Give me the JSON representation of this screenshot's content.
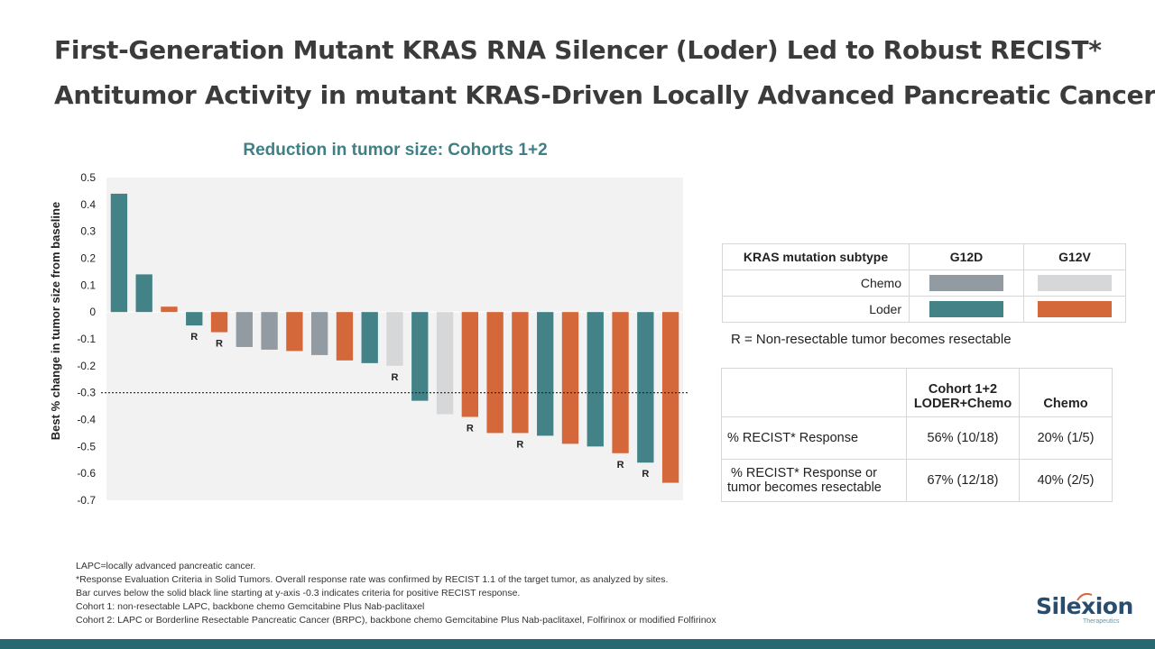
{
  "slide": {
    "title_line1": "First-Generation Mutant KRAS RNA Silencer (Loder) Led to Robust RECIST*",
    "title_line2": "Antitumor Activity in mutant KRAS-Driven Locally Advanced Pancreatic Cancer"
  },
  "colors": {
    "teal": "#438388",
    "orange": "#d5683a",
    "grey": "#929aa2",
    "light_grey": "#d6d7d9",
    "title_teal": "#3f7f86",
    "bar_band": "#286870"
  },
  "chart_data": {
    "type": "bar",
    "title": "Reduction in tumor size: Cohorts 1+2",
    "ylabel": "Best % change in tumor size from baseline",
    "xlabel": "",
    "ylim": [
      -0.7,
      0.5
    ],
    "yticks": [
      0.5,
      0.4,
      0.3,
      0.2,
      0.1,
      0,
      -0.1,
      -0.2,
      -0.3,
      -0.4,
      -0.5,
      -0.6,
      -0.7
    ],
    "threshold": -0.3,
    "threshold_note": "Bar curves below the solid black line starting at y-axis -0.3 indicates criteria for positive RECIST response.",
    "bars": [
      {
        "value": 0.44,
        "group": "Loder G12D",
        "resectable": false
      },
      {
        "value": 0.14,
        "group": "Loder G12D",
        "resectable": false
      },
      {
        "value": 0.02,
        "group": "Loder G12V",
        "resectable": false
      },
      {
        "value": -0.05,
        "group": "Loder G12D",
        "resectable": true
      },
      {
        "value": -0.075,
        "group": "Loder G12V",
        "resectable": true
      },
      {
        "value": -0.13,
        "group": "Chemo G12D",
        "resectable": false
      },
      {
        "value": -0.14,
        "group": "Chemo G12D",
        "resectable": false
      },
      {
        "value": -0.145,
        "group": "Loder G12V",
        "resectable": false
      },
      {
        "value": -0.16,
        "group": "Chemo G12D",
        "resectable": false
      },
      {
        "value": -0.18,
        "group": "Loder G12V",
        "resectable": false
      },
      {
        "value": -0.19,
        "group": "Loder G12D",
        "resectable": false
      },
      {
        "value": -0.2,
        "group": "Chemo G12V",
        "resectable": true
      },
      {
        "value": -0.33,
        "group": "Loder G12D",
        "resectable": false
      },
      {
        "value": -0.38,
        "group": "Chemo G12V",
        "resectable": false
      },
      {
        "value": -0.39,
        "group": "Loder G12V",
        "resectable": true
      },
      {
        "value": -0.45,
        "group": "Loder G12V",
        "resectable": false
      },
      {
        "value": -0.45,
        "group": "Loder G12V",
        "resectable": true
      },
      {
        "value": -0.46,
        "group": "Loder G12D",
        "resectable": false
      },
      {
        "value": -0.49,
        "group": "Loder G12V",
        "resectable": false
      },
      {
        "value": -0.5,
        "group": "Loder G12D",
        "resectable": false
      },
      {
        "value": -0.525,
        "group": "Loder G12V",
        "resectable": true
      },
      {
        "value": -0.56,
        "group": "Loder G12D",
        "resectable": true
      },
      {
        "value": -0.635,
        "group": "Loder G12V",
        "resectable": false
      }
    ],
    "resectable_marker": "R"
  },
  "legend": {
    "header_label": "KRAS mutation subtype",
    "col1": "G12D",
    "col2": "G12V",
    "row1_label": "Chemo",
    "row2_label": "Loder"
  },
  "r_note": "R = Non-resectable tumor becomes resectable",
  "response_table": {
    "header_col2_line1": "Cohort 1+2",
    "header_col2_line2": "LODER+Chemo",
    "header_col3": "Chemo",
    "row1_label": "% RECIST* Response",
    "row1_loder": "56% (10/18)",
    "row1_chemo": "20% (1/5)",
    "row2_label_line1": "% RECIST* Response or",
    "row2_label_line2": "tumor becomes resectable",
    "row2_loder": "67% (12/18)",
    "row2_chemo": "40% (2/5)"
  },
  "footnotes": {
    "line1": "LAPC=locally advanced pancreatic cancer.",
    "line2": "*Response Evaluation Criteria in Solid Tumors. Overall response rate was confirmed by RECIST 1.1 of the target tumor, as analyzed by sites.",
    "line3": "Bar curves below the solid black line starting at y-axis -0.3 indicates criteria for positive RECIST response.",
    "line4": "Cohort 1: non-resectable LAPC, backbone chemo Gemcitabine Plus Nab-paclitaxel",
    "line5": "Cohort 2: LAPC or Borderline Resectable Pancreatic Cancer (BRPC), backbone chemo Gemcitabine Plus Nab-paclitaxel, Folfirinox or modified Folfirinox"
  },
  "logo": {
    "name": "Silexion",
    "subtitle": "Therapeutics"
  }
}
